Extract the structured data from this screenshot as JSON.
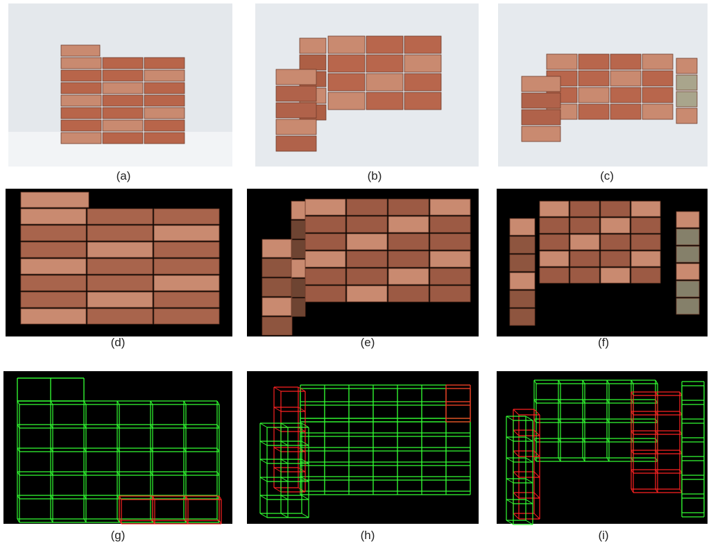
{
  "panels": [
    {
      "caption": "(a)"
    },
    {
      "caption": "(b)"
    },
    {
      "caption": "(c)"
    },
    {
      "caption": "(d)"
    },
    {
      "caption": "(e)"
    },
    {
      "caption": "(f)"
    },
    {
      "caption": "(g)"
    },
    {
      "caption": "(h)"
    },
    {
      "caption": "(i)"
    }
  ]
}
